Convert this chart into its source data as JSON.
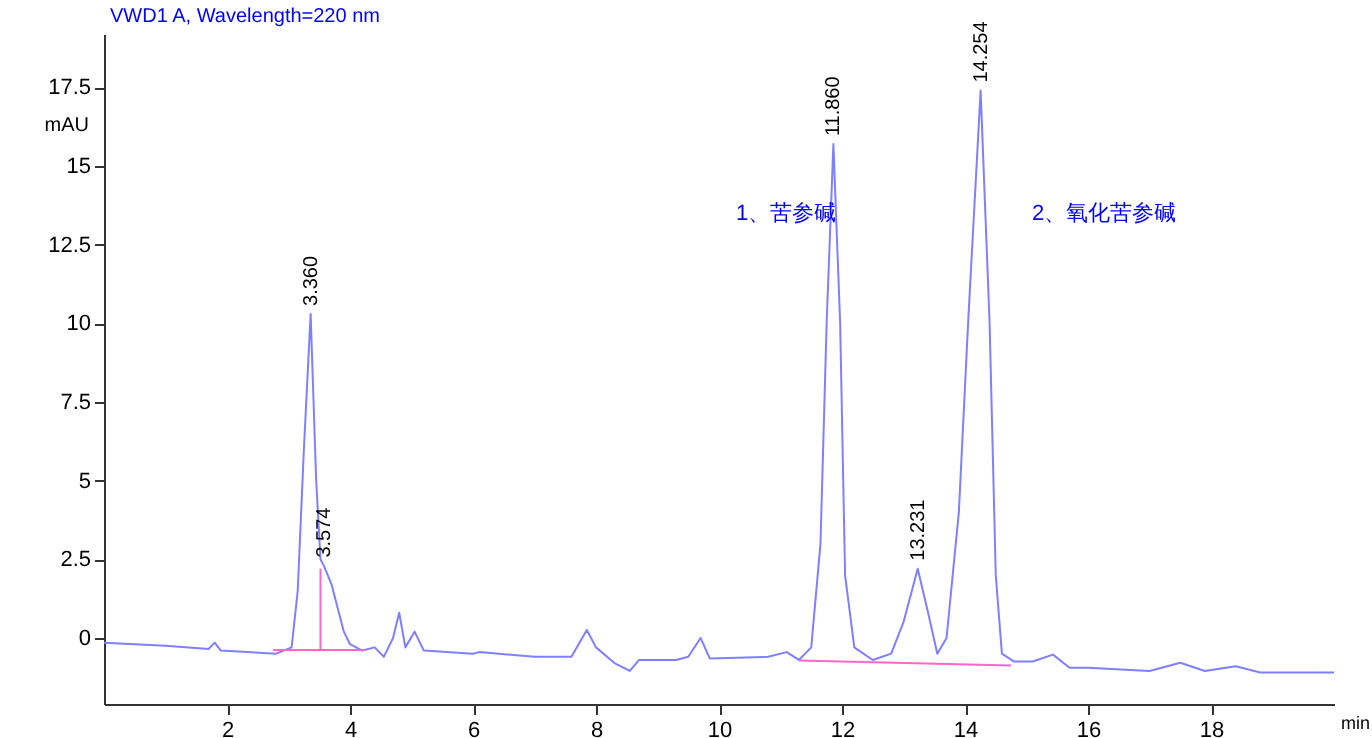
{
  "chart_data": {
    "type": "line",
    "title": "VWD1 A, Wavelength=220 nm",
    "xlabel": "min",
    "ylabel": "mAU",
    "xlim": [
      0,
      20
    ],
    "ylim": [
      -2.1,
      19.2
    ],
    "xticks": [
      2,
      4,
      6,
      8,
      10,
      12,
      14,
      16,
      18
    ],
    "yticks": [
      0,
      2.5,
      5,
      7.5,
      10,
      12.5,
      15,
      17.5
    ],
    "grid": false,
    "legend": false,
    "annotations": [
      "1、苦参碱",
      "2、氧化苦参碱",
      {
        "text": "3.360",
        "x": 3.36,
        "y": 10.3
      },
      {
        "text": "3.574",
        "x": 3.574,
        "y": 2.3
      },
      {
        "text": "11.860",
        "x": 11.86,
        "y": 15.7
      },
      {
        "text": "13.231",
        "x": 13.231,
        "y": 2.2
      },
      {
        "text": "14.254",
        "x": 14.254,
        "y": 17.4
      }
    ],
    "series": [
      {
        "color": "#7f7fff",
        "x": [
          0,
          1.0,
          1.7,
          1.8,
          1.9,
          2.8,
          3.05,
          3.15,
          3.25,
          3.36,
          3.45,
          3.52,
          3.574,
          3.7,
          3.9,
          4.0,
          4.2,
          4.4,
          4.55,
          4.7,
          4.8,
          4.9,
          5.05,
          5.2,
          6.0,
          6.1,
          7.0,
          7.6,
          7.85,
          8.0,
          8.3,
          8.55,
          8.7,
          9.3,
          9.5,
          9.7,
          9.85,
          10.8,
          11.1,
          11.3,
          11.5,
          11.65,
          11.75,
          11.86,
          11.97,
          12.05,
          12.2,
          12.5,
          12.8,
          13.0,
          13.231,
          13.4,
          13.55,
          13.7,
          13.9,
          14.05,
          14.254,
          14.4,
          14.5,
          14.6,
          14.8,
          15.1,
          15.43,
          15.7,
          16,
          17,
          17.5,
          17.9,
          18.4,
          18.8,
          19.2,
          20
        ],
        "values": [
          -0.15,
          -0.25,
          -0.35,
          -0.15,
          -0.4,
          -0.5,
          -0.3,
          1.5,
          6,
          10.3,
          5,
          2.5,
          2.3,
          1.7,
          0.2,
          -0.2,
          -0.4,
          -0.3,
          -0.6,
          0.0,
          0.8,
          -0.3,
          0.2,
          -0.4,
          -0.5,
          -0.45,
          -0.6,
          -0.6,
          0.25,
          -0.3,
          -0.8,
          -1.05,
          -0.7,
          -0.7,
          -0.6,
          0.0,
          -0.65,
          -0.6,
          -0.45,
          -0.7,
          -0.3,
          3,
          10,
          15.7,
          10,
          2,
          -0.3,
          -0.7,
          -0.5,
          0.5,
          2.2,
          0.8,
          -0.5,
          0,
          4,
          10,
          17.4,
          10,
          2,
          -0.5,
          -0.75,
          -0.75,
          -0.53,
          -0.95,
          -0.95,
          -1.05,
          -0.79,
          -1.05,
          -0.9,
          -1.1,
          -1.1,
          -1.1
        ],
        "line_style": "solid"
      },
      {
        "color": "#ff66cc",
        "x": [
          2.75,
          4.25,
          null,
          3.52,
          3.52,
          null,
          11.3,
          14.75
        ],
        "values": [
          -0.38,
          -0.38,
          null,
          -0.38,
          2.2,
          null,
          -0.72,
          -0.88
        ],
        "line_style": "solid"
      }
    ]
  }
}
